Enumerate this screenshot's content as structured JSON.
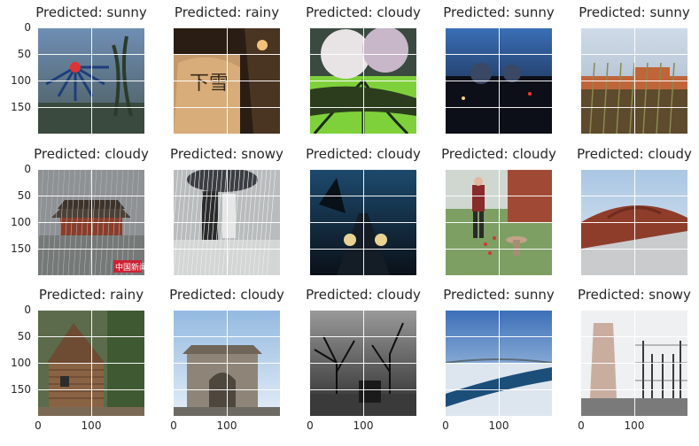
{
  "panels": [
    {
      "title": "Predicted: sunny",
      "scene": "carousel"
    },
    {
      "title": "Predicted: rainy",
      "scene": "snow-wall"
    },
    {
      "title": "Predicted: cloudy",
      "scene": "tree-green"
    },
    {
      "title": "Predicted: sunny",
      "scene": "night-city"
    },
    {
      "title": "Predicted: sunny",
      "scene": "field-houses"
    },
    {
      "title": "Predicted: cloudy",
      "scene": "pagoda-rain"
    },
    {
      "title": "Predicted: snowy",
      "scene": "umbrella-rain"
    },
    {
      "title": "Predicted: cloudy",
      "scene": "night-road"
    },
    {
      "title": "Predicted: cloudy",
      "scene": "garden-man"
    },
    {
      "title": "Predicted: cloudy",
      "scene": "brick-dome"
    },
    {
      "title": "Predicted: rainy",
      "scene": "wood-house"
    },
    {
      "title": "Predicted: cloudy",
      "scene": "stone-arch"
    },
    {
      "title": "Predicted: cloudy",
      "scene": "dark-trees"
    },
    {
      "title": "Predicted: sunny",
      "scene": "frozen-river"
    },
    {
      "title": "Predicted: snowy",
      "scene": "factory"
    }
  ],
  "y_ticks": [
    "0",
    "50",
    "100",
    "150"
  ],
  "x_ticks": [
    "0",
    "100"
  ],
  "watermark": "中国新闻"
}
